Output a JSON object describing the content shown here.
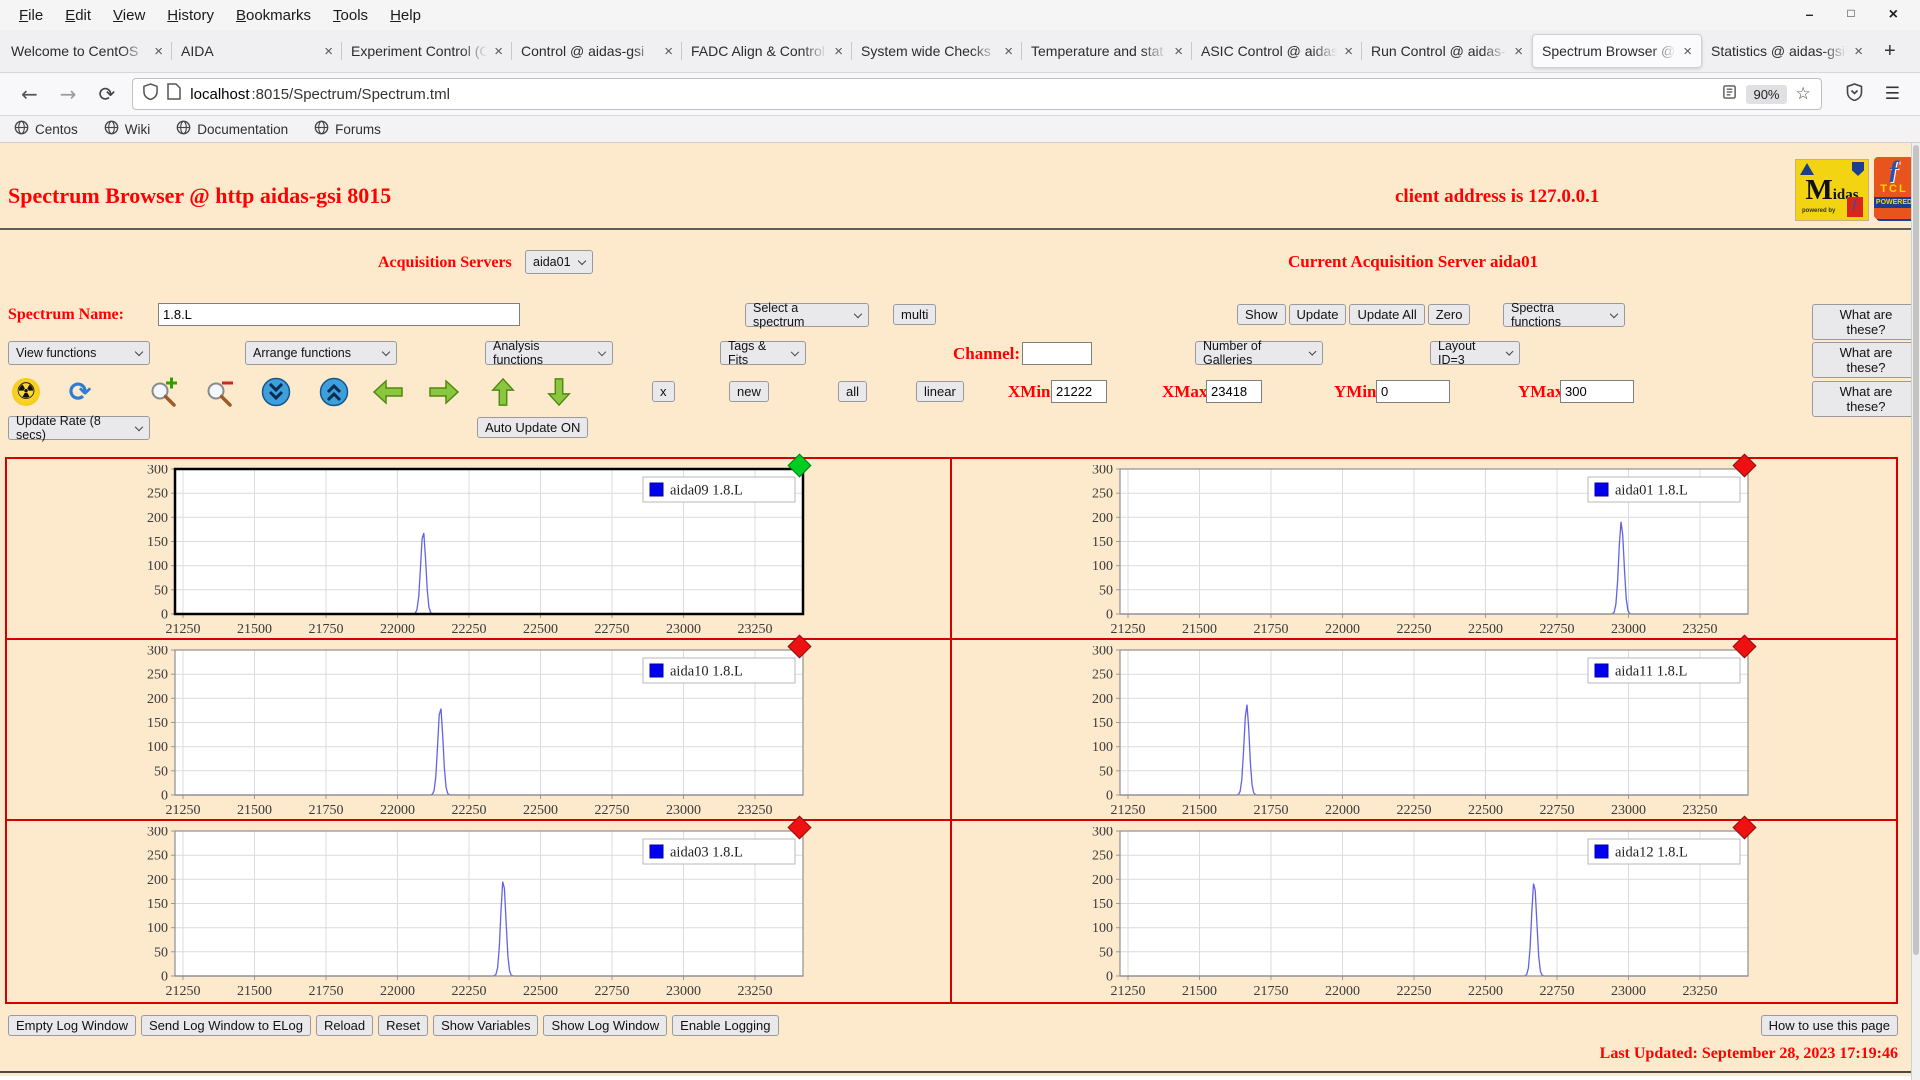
{
  "browser": {
    "menu": [
      "File",
      "Edit",
      "View",
      "History",
      "Bookmarks",
      "Tools",
      "Help"
    ],
    "window_controls": {
      "minimize": "–",
      "maximize": "□",
      "close": "×"
    },
    "tabs": [
      {
        "label": "Welcome to CentOS",
        "active": false
      },
      {
        "label": "AIDA",
        "active": false
      },
      {
        "label": "Experiment Control (C",
        "active": false
      },
      {
        "label": "Control @ aidas-gsi",
        "active": false
      },
      {
        "label": "FADC Align & Control",
        "active": false
      },
      {
        "label": "System wide Checks",
        "active": false
      },
      {
        "label": "Temperature and stat",
        "active": false
      },
      {
        "label": "ASIC Control @ aidas",
        "active": false
      },
      {
        "label": "Run Control @ aidas-",
        "active": false
      },
      {
        "label": "Spectrum Browser @ ",
        "active": true
      },
      {
        "label": "Statistics @ aidas-gsi",
        "active": false
      }
    ],
    "new_tab": "+",
    "nav": {
      "back": "←",
      "forward": "→",
      "reload": "⟳"
    },
    "url_host": "localhost",
    "url_rest": ":8015/Spectrum/Spectrum.tml",
    "zoom_level": "90%",
    "hamburger": "☰",
    "bookmarks": [
      "Centos",
      "Wiki",
      "Documentation",
      "Forums"
    ]
  },
  "header": {
    "title": "Spectrum Browser @ http aidas-gsi 8015",
    "client_address": "client address is 127.0.0.1",
    "logo_midas": "Midas",
    "logo_midas_powered": "powered by",
    "logo_feather": "ƒ",
    "logo_tcl": "TCL",
    "logo_tcl_powered": "POWERED"
  },
  "controls": {
    "acquisition_servers_label": "Acquisition Servers",
    "acquisition_server_selected": "aida01",
    "current_server_text": "Current Acquisition Server aida01",
    "spectrum_name_label": "Spectrum Name:",
    "spectrum_name_value": "1.8.L",
    "select_spectrum_label": "Select a spectrum",
    "multi_label": "multi",
    "show_label": "Show",
    "update_label": "Update",
    "update_all_label": "Update All",
    "zero_label": "Zero",
    "spectra_functions_label": "Spectra functions",
    "what_are_these_label": "What are these?",
    "view_functions_label": "View functions",
    "arrange_functions_label": "Arrange functions",
    "analysis_functions_label": "Analysis functions",
    "tags_fits_label": "Tags & Fits",
    "channel_label": "Channel:",
    "channel_value": "",
    "galleries_label": "Number of Galleries",
    "layout_label": "Layout ID=3",
    "x_label": "x",
    "new_label": "new",
    "all_label": "all",
    "linear_label": "linear",
    "xmin_label": "XMin",
    "xmin_value": "21222",
    "xmax_label": "XMax",
    "xmax_value": "23418",
    "ymin_label": "YMin",
    "ymin_value": "0",
    "ymax_label": "YMax",
    "ymax_value": "300",
    "update_rate_label": "Update Rate (8 secs)",
    "auto_update_label": "Auto Update ON",
    "icon_names": [
      "clear-radiation",
      "refresh",
      "zoom-in",
      "zoom-out",
      "fast-down",
      "fast-up",
      "move-left",
      "move-right",
      "move-up",
      "move-down"
    ]
  },
  "footer": {
    "buttons": [
      "Empty Log Window",
      "Send Log Window to ELog",
      "Reload",
      "Reset",
      "Show Variables",
      "Show Log Window",
      "Enable Logging"
    ],
    "how_to_use_label": "How to use this page",
    "last_updated": "Last Updated: September 28, 2023 17:19:46"
  },
  "chart_data": {
    "type": "line",
    "layout": {
      "rows": 3,
      "cols": 2
    },
    "xlim": [
      21222,
      23418
    ],
    "ylim": [
      0,
      300
    ],
    "x_ticks": [
      21250,
      21500,
      21750,
      22000,
      22250,
      22500,
      22750,
      23000,
      23250
    ],
    "y_ticks": [
      0,
      50,
      100,
      150,
      200,
      250,
      300
    ],
    "grid": true,
    "legend_position": "top-right",
    "line_color": "#6262e8",
    "legend_swatch_color": "#0000ee",
    "charts": [
      {
        "series": "aida09 1.8.L",
        "peak_center": 22090,
        "peak_height": 172,
        "peak_sigma": 9,
        "selected": true,
        "marker_color": "#00cc22"
      },
      {
        "series": "aida01 1.8.L",
        "peak_center": 22975,
        "peak_height": 192,
        "peak_sigma": 9,
        "selected": false,
        "marker_color": "#ee1111"
      },
      {
        "series": "aida10 1.8.L",
        "peak_center": 22150,
        "peak_height": 183,
        "peak_sigma": 9,
        "selected": false,
        "marker_color": "#ee1111"
      },
      {
        "series": "aida11 1.8.L",
        "peak_center": 21665,
        "peak_height": 188,
        "peak_sigma": 9,
        "selected": false,
        "marker_color": "#ee1111"
      },
      {
        "series": "aida03 1.8.L",
        "peak_center": 22370,
        "peak_height": 200,
        "peak_sigma": 9,
        "selected": false,
        "marker_color": "#ee1111"
      },
      {
        "series": "aida12 1.8.L",
        "peak_center": 22670,
        "peak_height": 196,
        "peak_sigma": 9,
        "selected": false,
        "marker_color": "#ee1111"
      }
    ]
  }
}
